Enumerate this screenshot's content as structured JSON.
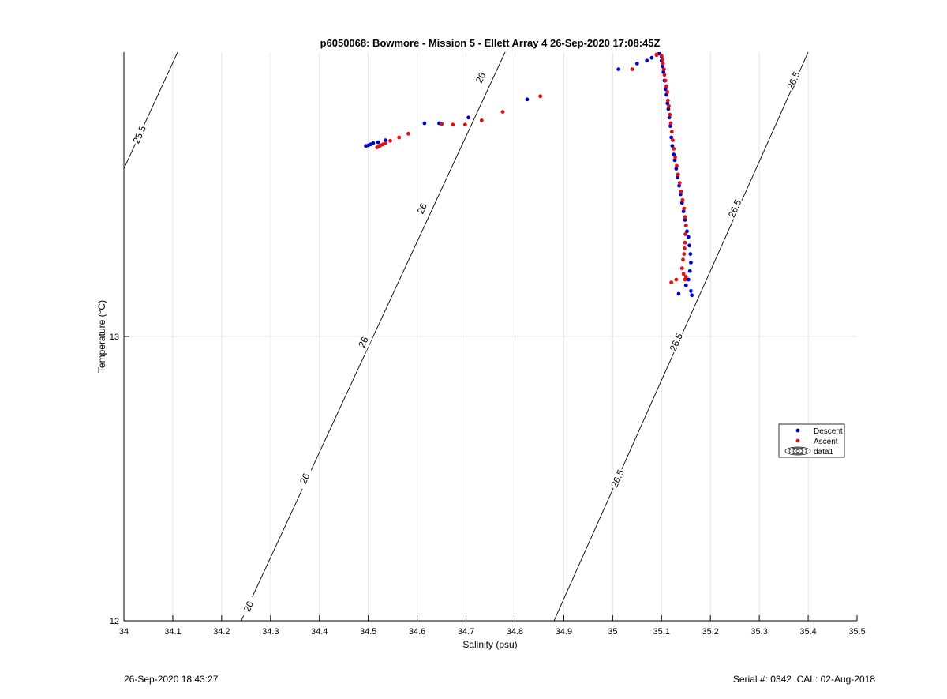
{
  "chart_data": {
    "type": "scatter",
    "title": "p6050068: Bowmore - Mission 5 - Ellett Array 4 26-Sep-2020 17:08:45Z",
    "xlabel": "Salinity (psu)",
    "ylabel": "Temperature (°C)",
    "xlim": [
      34.0,
      35.5
    ],
    "ylim": [
      12.0,
      14.0
    ],
    "x_ticks": [
      34,
      34.1,
      34.2,
      34.3,
      34.4,
      34.5,
      34.6,
      34.7,
      34.8,
      34.9,
      35,
      35.1,
      35.2,
      35.3,
      35.4,
      35.5
    ],
    "x_tick_labels": [
      "34",
      "34.1",
      "34.2",
      "34.3",
      "34.4",
      "34.5",
      "34.6",
      "34.7",
      "34.8",
      "34.9",
      "35",
      "35.1",
      "35.2",
      "35.3",
      "35.4",
      "35.5"
    ],
    "y_ticks": [
      12,
      13
    ],
    "y_tick_labels": [
      "12",
      "13"
    ],
    "grid": true,
    "legend_position": "right",
    "legend": [
      {
        "label": "Descent",
        "marker": "dot",
        "color": "#0000cc"
      },
      {
        "label": "Ascent",
        "marker": "dot",
        "color": "#e01010"
      },
      {
        "label": "data1",
        "marker": "contour"
      }
    ],
    "contours": [
      {
        "label": "25.5",
        "points": [
          [
            34.0,
            13.59
          ],
          [
            34.11,
            14.0
          ]
        ],
        "label_positions": [
          [
            34.032,
            13.71
          ]
        ]
      },
      {
        "label": "26",
        "points": [
          [
            34.24,
            12.0
          ],
          [
            34.78,
            14.0
          ]
        ],
        "label_positions": [
          [
            34.255,
            12.05
          ],
          [
            34.37,
            12.5
          ],
          [
            34.49,
            12.98
          ],
          [
            34.61,
            13.45
          ],
          [
            34.73,
            13.91
          ]
        ]
      },
      {
        "label": "26.5",
        "points": [
          [
            34.88,
            12.0
          ],
          [
            35.4,
            14.0
          ]
        ],
        "label_positions": [
          [
            35.01,
            12.5
          ],
          [
            35.13,
            12.98
          ],
          [
            35.25,
            13.45
          ],
          [
            35.37,
            13.9
          ]
        ]
      }
    ],
    "series": [
      {
        "name": "Descent",
        "color": "#0000cc",
        "points": [
          [
            34.495,
            13.67
          ],
          [
            34.5,
            13.672
          ],
          [
            34.505,
            13.676
          ],
          [
            34.51,
            13.68
          ],
          [
            34.52,
            13.683
          ],
          [
            34.535,
            13.69
          ],
          [
            34.615,
            13.75
          ],
          [
            34.645,
            13.75
          ],
          [
            34.65,
            13.748
          ],
          [
            34.705,
            13.77
          ],
          [
            34.825,
            13.834
          ],
          [
            35.012,
            13.94
          ],
          [
            35.05,
            13.96
          ],
          [
            35.07,
            13.97
          ],
          [
            35.08,
            13.98
          ],
          [
            35.09,
            13.99
          ],
          [
            35.095,
            13.995
          ],
          [
            35.1,
            13.985
          ],
          [
            35.1,
            13.97
          ],
          [
            35.102,
            13.95
          ],
          [
            35.104,
            13.93
          ],
          [
            35.106,
            13.9
          ],
          [
            35.108,
            13.87
          ],
          [
            35.11,
            13.85
          ],
          [
            35.112,
            13.82
          ],
          [
            35.114,
            13.8
          ],
          [
            35.116,
            13.77
          ],
          [
            35.118,
            13.74
          ],
          [
            35.12,
            13.7
          ],
          [
            35.122,
            13.67
          ],
          [
            35.125,
            13.64
          ],
          [
            35.127,
            13.62
          ],
          [
            35.13,
            13.59
          ],
          [
            35.133,
            13.56
          ],
          [
            35.136,
            13.53
          ],
          [
            35.139,
            13.5
          ],
          [
            35.142,
            13.47
          ],
          [
            35.145,
            13.44
          ],
          [
            35.148,
            13.41
          ],
          [
            35.15,
            13.39
          ],
          [
            35.152,
            13.37
          ],
          [
            35.155,
            13.35
          ],
          [
            35.157,
            13.32
          ],
          [
            35.159,
            13.29
          ],
          [
            35.16,
            13.26
          ],
          [
            35.158,
            13.23
          ],
          [
            35.155,
            13.2
          ],
          [
            35.15,
            13.18
          ],
          [
            35.16,
            13.16
          ],
          [
            35.162,
            13.145
          ],
          [
            35.135,
            13.15
          ]
        ]
      },
      {
        "name": "Ascent",
        "color": "#e01010",
        "points": [
          [
            34.518,
            13.665
          ],
          [
            34.522,
            13.668
          ],
          [
            34.525,
            13.672
          ],
          [
            34.53,
            13.676
          ],
          [
            34.535,
            13.68
          ],
          [
            34.545,
            13.688
          ],
          [
            34.563,
            13.7
          ],
          [
            34.582,
            13.713
          ],
          [
            34.65,
            13.747
          ],
          [
            34.673,
            13.745
          ],
          [
            34.698,
            13.745
          ],
          [
            34.732,
            13.76
          ],
          [
            34.775,
            13.79
          ],
          [
            34.852,
            13.845
          ],
          [
            35.04,
            13.94
          ],
          [
            35.09,
            13.992
          ],
          [
            35.1,
            13.988
          ],
          [
            35.102,
            13.975
          ],
          [
            35.103,
            13.96
          ],
          [
            35.105,
            13.94
          ],
          [
            35.106,
            13.92
          ],
          [
            35.108,
            13.9
          ],
          [
            35.11,
            13.88
          ],
          [
            35.112,
            13.86
          ],
          [
            35.113,
            13.83
          ],
          [
            35.115,
            13.81
          ],
          [
            35.117,
            13.78
          ],
          [
            35.119,
            13.75
          ],
          [
            35.121,
            13.72
          ],
          [
            35.123,
            13.69
          ],
          [
            35.125,
            13.66
          ],
          [
            35.128,
            13.63
          ],
          [
            35.131,
            13.6
          ],
          [
            35.134,
            13.57
          ],
          [
            35.137,
            13.54
          ],
          [
            35.14,
            13.51
          ],
          [
            35.143,
            13.48
          ],
          [
            35.146,
            13.45
          ],
          [
            35.148,
            13.42
          ],
          [
            35.15,
            13.39
          ],
          [
            35.149,
            13.36
          ],
          [
            35.148,
            13.33
          ],
          [
            35.147,
            13.31
          ],
          [
            35.146,
            13.29
          ],
          [
            35.144,
            13.27
          ],
          [
            35.142,
            13.24
          ],
          [
            35.145,
            13.22
          ],
          [
            35.148,
            13.2
          ],
          [
            35.15,
            13.21
          ],
          [
            35.13,
            13.2
          ],
          [
            35.12,
            13.19
          ]
        ]
      }
    ]
  },
  "footer": {
    "timestamp": "26-Sep-2020 18:43:27",
    "serial": "Serial #: 0342  CAL: 02-Aug-2018"
  }
}
